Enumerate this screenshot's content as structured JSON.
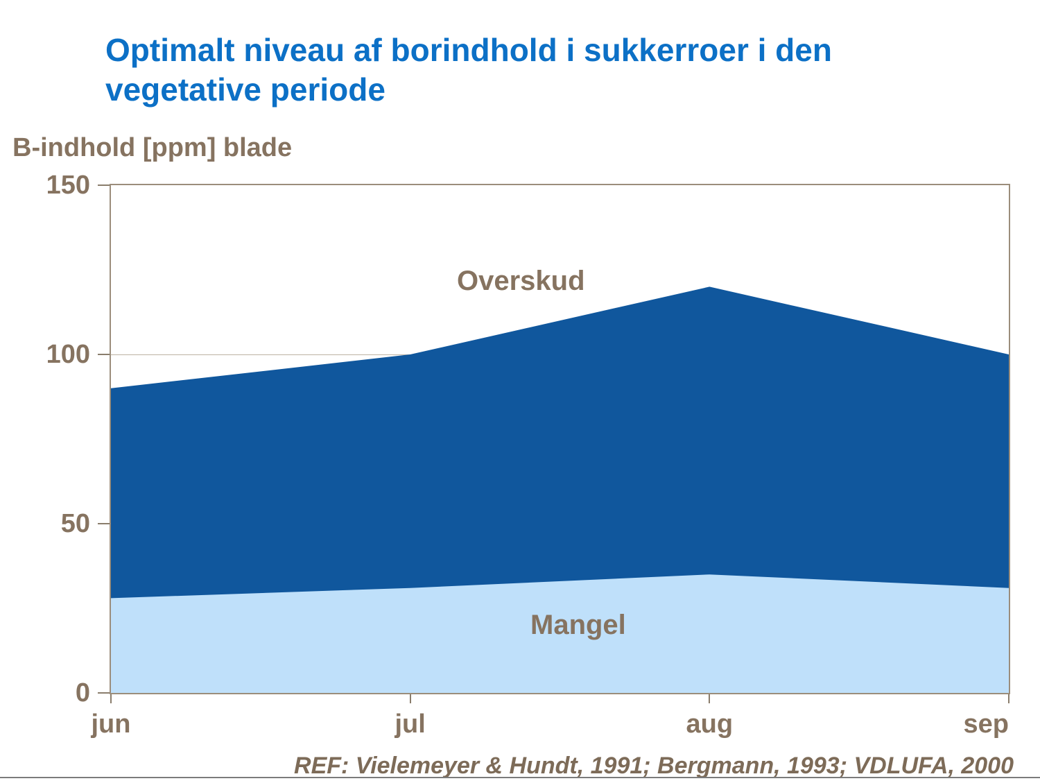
{
  "slide": {
    "title_line1": "Optimalt niveau af borindhold i sukkerroer i den",
    "title_line2": "vegetative periode",
    "reference": "REF: Vielemeyer & Hundt, 1991; Bergmann, 1993; VDLUFA, 2000"
  },
  "colors": {
    "title_blue": "#0C70C6",
    "dark_area_blue": "#10579D",
    "light_area_blue": "#BFE0FA",
    "label_brown": "#867360",
    "frame_tan": "#9B8D7B",
    "gridline_tan": "#BDB2A2",
    "bottom_rule_gray": "#7B7B7B"
  },
  "chart_data": {
    "type": "area",
    "title": "",
    "ylabel": "B-indhold [ppm] blade",
    "xlabel": "",
    "categories": [
      "jun",
      "jul",
      "aug",
      "sep"
    ],
    "series": [
      {
        "name": "Mangel",
        "values": [
          28,
          31,
          35,
          31
        ],
        "color": "#BFE0FA"
      },
      {
        "name": "Overskud",
        "values": [
          90,
          100,
          120,
          100
        ],
        "color": "#10579D"
      }
    ],
    "region_labels": {
      "above_upper": "Overskud",
      "below_lower": "Mangel"
    },
    "ylim": [
      0,
      150
    ],
    "yticks": [
      0,
      50,
      100,
      150
    ],
    "grid": "horizontal",
    "legend": "none"
  }
}
